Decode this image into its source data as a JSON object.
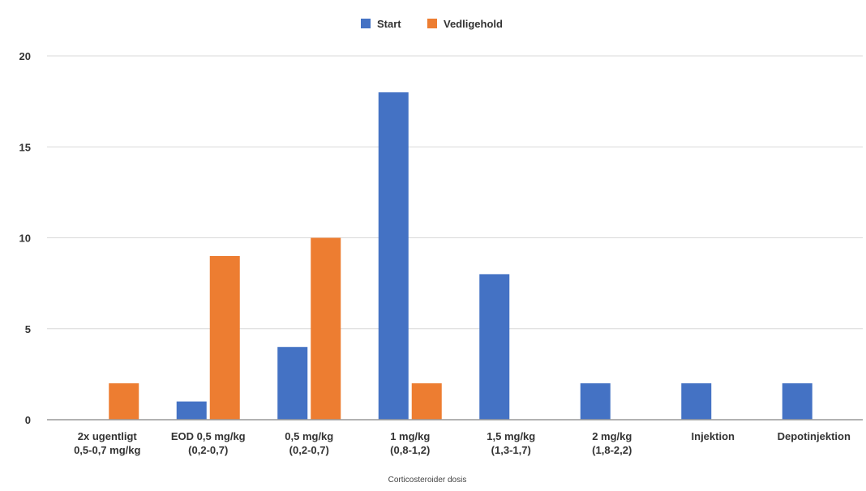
{
  "chart_data": {
    "type": "bar",
    "title": "",
    "xlabel": "Corticosteroider dosis",
    "ylabel": "",
    "ylim": [
      0,
      20
    ],
    "yticks": [
      0,
      5,
      10,
      15,
      20
    ],
    "grid": true,
    "legend_position": "top-center",
    "categories": [
      [
        "2x ugentligt",
        "0,5-0,7 mg/kg"
      ],
      [
        "EOD  0,5 mg/kg",
        "(0,2-0,7)"
      ],
      [
        "0,5 mg/kg",
        "(0,2-0,7)"
      ],
      [
        "1 mg/kg",
        "(0,8-1,2)"
      ],
      [
        "1,5 mg/kg",
        "(1,3-1,7)"
      ],
      [
        "2 mg/kg",
        "(1,8-2,2)"
      ],
      [
        "Injektion"
      ],
      [
        "Depotinjektion"
      ]
    ],
    "series": [
      {
        "name": "Start",
        "color": "#4472c4",
        "values": [
          0,
          1,
          4,
          18,
          8,
          2,
          2,
          2
        ]
      },
      {
        "name": "Vedligehold",
        "color": "#ed7d31",
        "values": [
          2,
          9,
          10,
          2,
          0,
          0,
          0,
          0
        ]
      }
    ]
  }
}
